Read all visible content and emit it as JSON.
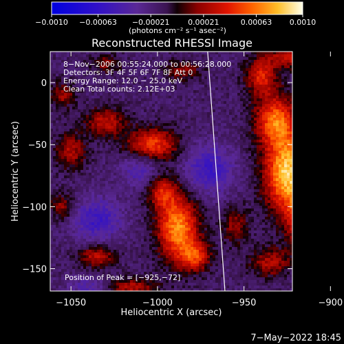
{
  "chart_data": {
    "type": "heatmap",
    "title": "Reconstructed RHESSI Image",
    "xlabel": "Heliocentric X (arcsec)",
    "ylabel": "Heliocentric Y (arcsec)",
    "xlim": [
      -1062,
      -922
    ],
    "ylim": [
      -168,
      25
    ],
    "x_ticks": [
      -1050,
      -1000,
      -950,
      -900
    ],
    "x_tick_labels": [
      "−1050",
      "−1000",
      "−950",
      "−900"
    ],
    "y_ticks": [
      0,
      -50,
      -100,
      -150
    ],
    "y_tick_labels": [
      "0",
      "−50",
      "−100",
      "−150"
    ],
    "colorbar": {
      "vmin": -0.001,
      "vmax": 0.001,
      "ticks": [
        -0.001,
        -0.00063,
        -0.00021,
        0.00021,
        0.00063,
        0.001
      ],
      "tick_labels": [
        "−0.0010",
        "−0.00063",
        "−0.00021",
        "0.00021",
        "0.00063",
        "0.0010"
      ],
      "units_text": "(photons cm⁻² s⁻¹ asec⁻²)"
    },
    "annotations": [
      "8−Nov−2006 00:55:24.000 to 00:56:28.000",
      "Detectors: 3F 4F 5F 6F 7F 8F Att 0",
      "Energy Range: 12.0 − 25.0 keV",
      "Clean    Total counts: 2.12E+03"
    ],
    "peak_label": "Position of Peak = [−925,−72]",
    "peak_position": [
      -925,
      -72
    ],
    "limb_line": [
      [
        -971,
        25
      ],
      [
        -961,
        -168
      ]
    ],
    "sources": [
      {
        "x": -925,
        "y": -72,
        "amp": 1.0,
        "sx": 9,
        "sy": 22
      },
      {
        "x": -932,
        "y": -30,
        "amp": 0.7,
        "sx": 8,
        "sy": 14
      },
      {
        "x": -940,
        "y": 5,
        "amp": 0.55,
        "sx": 6,
        "sy": 10
      },
      {
        "x": -912,
        "y": -110,
        "amp": 0.75,
        "sx": 8,
        "sy": 18
      },
      {
        "x": -988,
        "y": -118,
        "amp": 0.85,
        "sx": 8,
        "sy": 18
      },
      {
        "x": -978,
        "y": -140,
        "amp": 0.55,
        "sx": 6,
        "sy": 8
      },
      {
        "x": -997,
        "y": -88,
        "amp": 0.5,
        "sx": 6,
        "sy": 10
      },
      {
        "x": -1003,
        "y": -50,
        "amp": 0.65,
        "sx": 10,
        "sy": 9
      },
      {
        "x": -1030,
        "y": -32,
        "amp": 0.45,
        "sx": 8,
        "sy": 8
      },
      {
        "x": -1050,
        "y": -55,
        "amp": 0.4,
        "sx": 6,
        "sy": 10
      },
      {
        "x": -1055,
        "y": -10,
        "amp": 0.35,
        "sx": 5,
        "sy": 7
      },
      {
        "x": -1030,
        "y": 15,
        "amp": 0.3,
        "sx": 6,
        "sy": 5
      },
      {
        "x": -985,
        "y": 10,
        "amp": 0.3,
        "sx": 7,
        "sy": 6
      },
      {
        "x": -1035,
        "y": -140,
        "amp": 0.45,
        "sx": 7,
        "sy": 6
      },
      {
        "x": -1055,
        "y": -100,
        "amp": 0.35,
        "sx": 5,
        "sy": 7
      },
      {
        "x": -935,
        "y": -145,
        "amp": 0.4,
        "sx": 8,
        "sy": 8
      },
      {
        "x": -925,
        "y": 20,
        "amp": 0.45,
        "sx": 8,
        "sy": 6
      },
      {
        "x": -955,
        "y": -115,
        "amp": 0.35,
        "sx": 5,
        "sy": 10
      },
      {
        "x": -1015,
        "y": -165,
        "amp": 0.4,
        "sx": 10,
        "sy": 5
      },
      {
        "x": -970,
        "y": -70,
        "amp": -0.4,
        "sx": 10,
        "sy": 14
      },
      {
        "x": -1035,
        "y": -110,
        "amp": -0.4,
        "sx": 10,
        "sy": 12
      },
      {
        "x": -1010,
        "y": -70,
        "amp": -0.3,
        "sx": 8,
        "sy": 10
      },
      {
        "x": -900,
        "y": -40,
        "amp": -0.3,
        "sx": 8,
        "sy": 10
      },
      {
        "x": -1040,
        "y": -165,
        "amp": -0.25,
        "sx": 8,
        "sy": 6
      }
    ]
  },
  "footer": {
    "date": "7−May−2022 18:45"
  },
  "colors": {
    "background": "#000000",
    "text": "#ffffff",
    "limb_line": "#ffffff"
  }
}
